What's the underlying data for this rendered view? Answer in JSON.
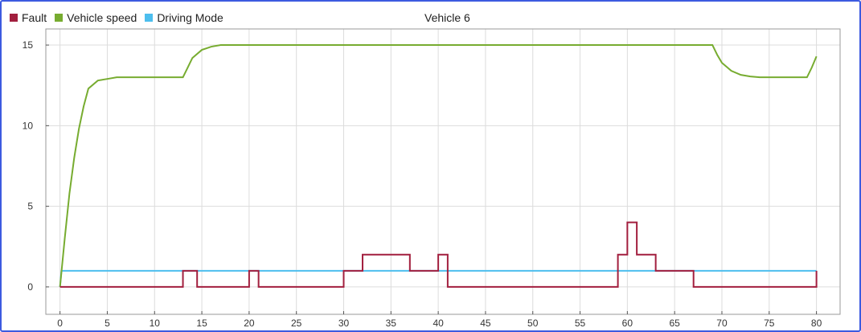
{
  "chart_data": {
    "type": "line",
    "title": "Vehicle 6",
    "xlabel": "",
    "ylabel": "",
    "xlim": [
      -1.5,
      82.5
    ],
    "ylim": [
      -1.7,
      16
    ],
    "x_ticks": [
      0,
      5,
      10,
      15,
      20,
      25,
      30,
      35,
      40,
      45,
      50,
      55,
      60,
      65,
      70,
      75,
      80
    ],
    "y_ticks": [
      0,
      5,
      10,
      15
    ],
    "grid": true,
    "legend_position": "top-left",
    "series": [
      {
        "name": "Fault",
        "color": "#a21f3e",
        "step": true,
        "points": [
          [
            0,
            0
          ],
          [
            13,
            0
          ],
          [
            13,
            1
          ],
          [
            14.5,
            1
          ],
          [
            14.5,
            0
          ],
          [
            20,
            0
          ],
          [
            20,
            1
          ],
          [
            21,
            1
          ],
          [
            21,
            0
          ],
          [
            30,
            0
          ],
          [
            30,
            1
          ],
          [
            32,
            1
          ],
          [
            32,
            2
          ],
          [
            37,
            2
          ],
          [
            37,
            1
          ],
          [
            40,
            1
          ],
          [
            40,
            2
          ],
          [
            41,
            2
          ],
          [
            41,
            0
          ],
          [
            59,
            0
          ],
          [
            59,
            2
          ],
          [
            60,
            2
          ],
          [
            60,
            4
          ],
          [
            61,
            4
          ],
          [
            61,
            2
          ],
          [
            63,
            2
          ],
          [
            63,
            1
          ],
          [
            67,
            1
          ],
          [
            67,
            0
          ],
          [
            80,
            0
          ],
          [
            80,
            1
          ]
        ]
      },
      {
        "name": "Vehicle speed",
        "color": "#77ac30",
        "step": false,
        "points": [
          [
            0,
            0
          ],
          [
            0.5,
            3
          ],
          [
            1,
            5.8
          ],
          [
            1.5,
            8
          ],
          [
            2,
            9.8
          ],
          [
            2.5,
            11.2
          ],
          [
            3,
            12.3
          ],
          [
            4,
            12.8
          ],
          [
            5,
            12.9
          ],
          [
            6,
            13
          ],
          [
            13,
            13
          ],
          [
            13.5,
            13.6
          ],
          [
            14,
            14.2
          ],
          [
            15,
            14.7
          ],
          [
            16,
            14.9
          ],
          [
            17,
            15
          ],
          [
            69,
            15
          ],
          [
            69.5,
            14.4
          ],
          [
            70,
            13.9
          ],
          [
            71,
            13.4
          ],
          [
            72,
            13.15
          ],
          [
            73,
            13.05
          ],
          [
            74,
            13
          ],
          [
            79,
            13
          ],
          [
            79.5,
            13.6
          ],
          [
            80,
            14.3
          ]
        ]
      },
      {
        "name": "Driving Mode",
        "color": "#4dbeee",
        "step": false,
        "points": [
          [
            0,
            0
          ],
          [
            0.15,
            1
          ],
          [
            80,
            1
          ]
        ]
      }
    ]
  }
}
